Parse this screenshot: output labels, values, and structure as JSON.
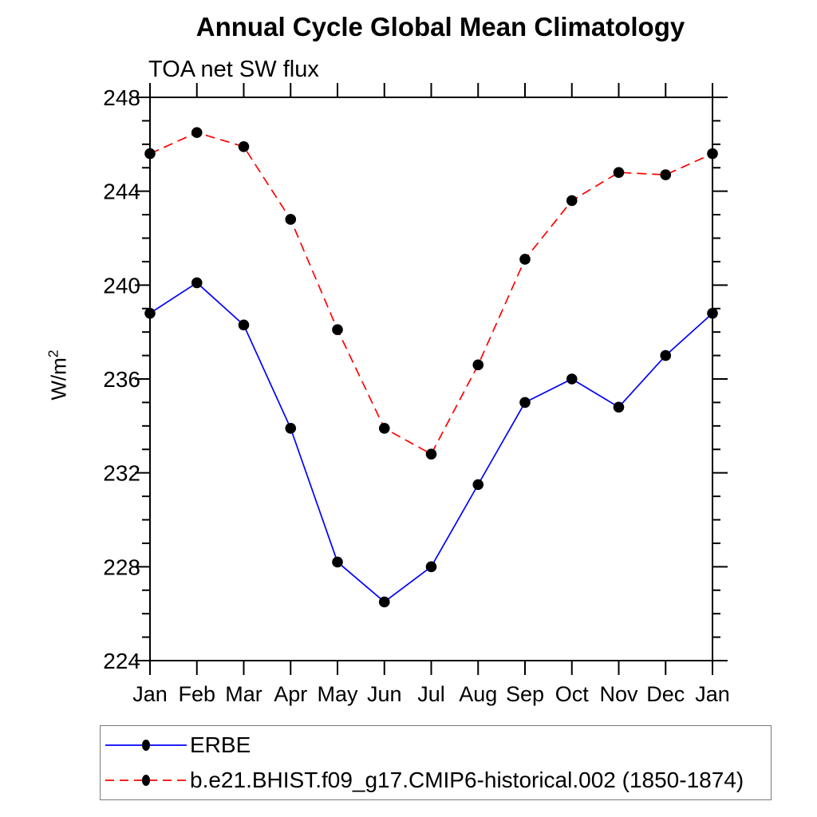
{
  "header": {
    "title": "Annual Cycle Global Mean Climatology",
    "subtitle": "TOA net SW flux"
  },
  "chart_data": {
    "type": "line",
    "title": "Annual Cycle Global Mean Climatology",
    "subtitle": "TOA net SW flux",
    "ylabel": {
      "base": "W/m",
      "sup": "2"
    },
    "xlabel": "",
    "categories": [
      "Jan",
      "Feb",
      "Mar",
      "Apr",
      "May",
      "Jun",
      "Jul",
      "Aug",
      "Sep",
      "Oct",
      "Nov",
      "Dec",
      "Jan"
    ],
    "ylim": [
      224,
      248
    ],
    "ytick_major": [
      224,
      228,
      232,
      236,
      240,
      244,
      248
    ],
    "ytick_minor_step": 1,
    "grid": false,
    "legend_position": "bottom-left-box",
    "axis_color": "#000000",
    "marker_color": "#000000",
    "series": [
      {
        "name": "ERBE",
        "color": "#0000ff",
        "line_style": "solid",
        "marker": "filled-circle",
        "values": [
          238.8,
          240.1,
          238.3,
          233.9,
          228.2,
          226.5,
          228.0,
          231.5,
          235.0,
          236.0,
          234.8,
          237.0,
          238.8
        ]
      },
      {
        "name": "b.e21.BHIST.f09_g17.CMIP6-historical.002 (1850-1874)",
        "color": "#ff0000",
        "line_style": "dashed",
        "marker": "filled-circle",
        "values": [
          245.6,
          246.5,
          245.9,
          242.8,
          238.1,
          233.9,
          232.8,
          236.6,
          241.1,
          243.6,
          244.8,
          244.7,
          245.6
        ]
      }
    ]
  }
}
